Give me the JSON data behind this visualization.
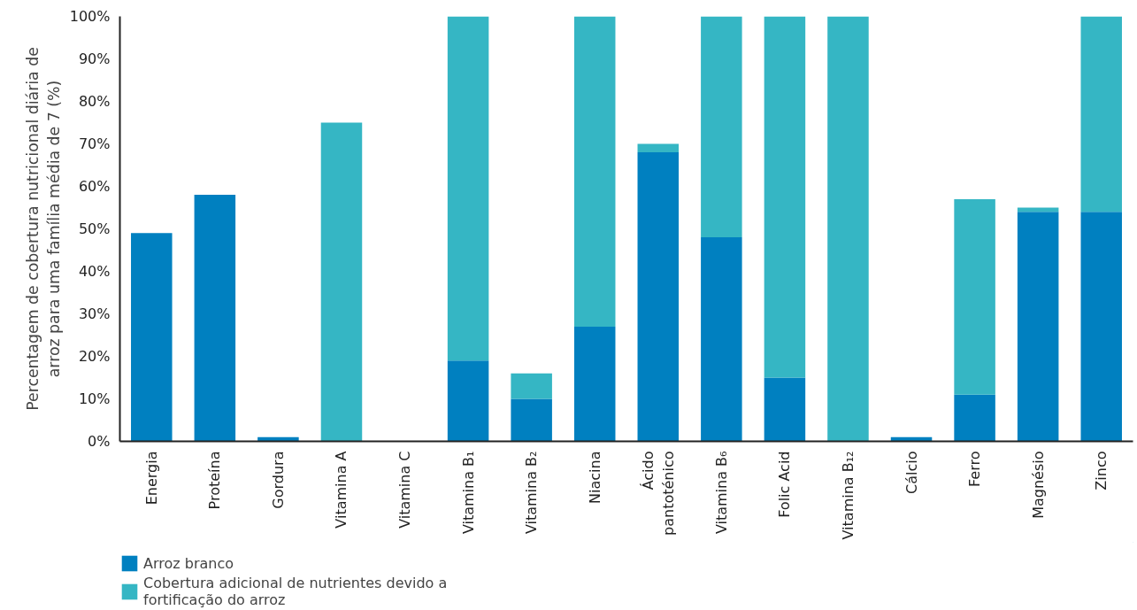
{
  "chart_data": {
    "type": "bar",
    "stacked": true,
    "ylabel": "Percentagem de cobertura nutricional diária de\narroz para uma família média de 7 (%)",
    "categories": [
      "Energia",
      "Proteína",
      "Gordura",
      "Vitamina A",
      "Vitamina C",
      "Vitamina B₁",
      "Vitamina B₂",
      "Niacina",
      "Ácido\npantoténico",
      "Vitamina B₆",
      "Folic Acid",
      "Vitamina B₁₂",
      "Cálcio",
      "Ferro",
      "Magnésio",
      "Zinco"
    ],
    "series": [
      {
        "name": "Arroz branco",
        "color": "#0080c0",
        "values": [
          49,
          58,
          1,
          0,
          0,
          19,
          10,
          27,
          68,
          48,
          15,
          0,
          1,
          11,
          54,
          54
        ]
      },
      {
        "name": "Cobertura adicional de nutrientes devido a\nfortificação do arroz",
        "color": "#35b6c4",
        "values": [
          0,
          0,
          0,
          75,
          0,
          81,
          6,
          73,
          2,
          52,
          85,
          100,
          0,
          46,
          1,
          46
        ]
      }
    ],
    "ylim": [
      0,
      100
    ],
    "yticks": [
      {
        "value": 0,
        "label": "0%"
      },
      {
        "value": 10,
        "label": "10%"
      },
      {
        "value": 20,
        "label": "20%"
      },
      {
        "value": 30,
        "label": "30%"
      },
      {
        "value": 40,
        "label": "40%"
      },
      {
        "value": 50,
        "label": "50%"
      },
      {
        "value": 60,
        "label": "60%"
      },
      {
        "value": 70,
        "label": "70%"
      },
      {
        "value": 80,
        "label": "80%"
      },
      {
        "value": 90,
        "label": "90%"
      },
      {
        "value": 100,
        "label": "100%"
      }
    ],
    "grid": false,
    "legend": "bottom left"
  }
}
